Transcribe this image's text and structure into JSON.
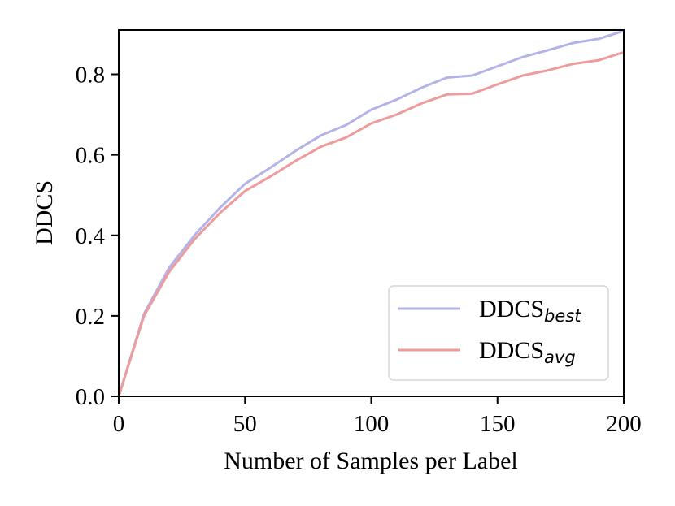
{
  "chart_data": {
    "type": "line",
    "title": "",
    "xlabel": "Number of Samples per Label",
    "ylabel": "DDCS",
    "xlim": [
      0,
      200
    ],
    "ylim": [
      0,
      0.91
    ],
    "grid": false,
    "legend_position": "bottom-right",
    "x_ticks": [
      0,
      50,
      100,
      150,
      200
    ],
    "x_tick_labels": [
      "0",
      "50",
      "100",
      "150",
      "200"
    ],
    "y_ticks": [
      0.0,
      0.2,
      0.4,
      0.6,
      0.8
    ],
    "y_tick_labels": [
      "0.0",
      "0.2",
      "0.4",
      "0.6",
      "0.8"
    ],
    "x": [
      0,
      10,
      20,
      30,
      40,
      50,
      60,
      70,
      80,
      90,
      100,
      110,
      120,
      130,
      140,
      150,
      160,
      170,
      180,
      190,
      200
    ],
    "series": [
      {
        "name": "DDCS",
        "subscript": "best",
        "color": "#b3b3e8",
        "values": [
          0.0,
          0.205,
          0.32,
          0.4,
          0.468,
          0.528,
          0.568,
          0.61,
          0.648,
          0.674,
          0.712,
          0.737,
          0.767,
          0.792,
          0.797,
          0.82,
          0.843,
          0.86,
          0.878,
          0.888,
          0.908
        ]
      },
      {
        "name": "DDCS",
        "subscript": "avg",
        "color": "#ed9b9b",
        "values": [
          0.0,
          0.2,
          0.31,
          0.39,
          0.455,
          0.51,
          0.546,
          0.585,
          0.62,
          0.643,
          0.678,
          0.7,
          0.728,
          0.75,
          0.752,
          0.775,
          0.797,
          0.81,
          0.826,
          0.835,
          0.855
        ]
      }
    ]
  }
}
